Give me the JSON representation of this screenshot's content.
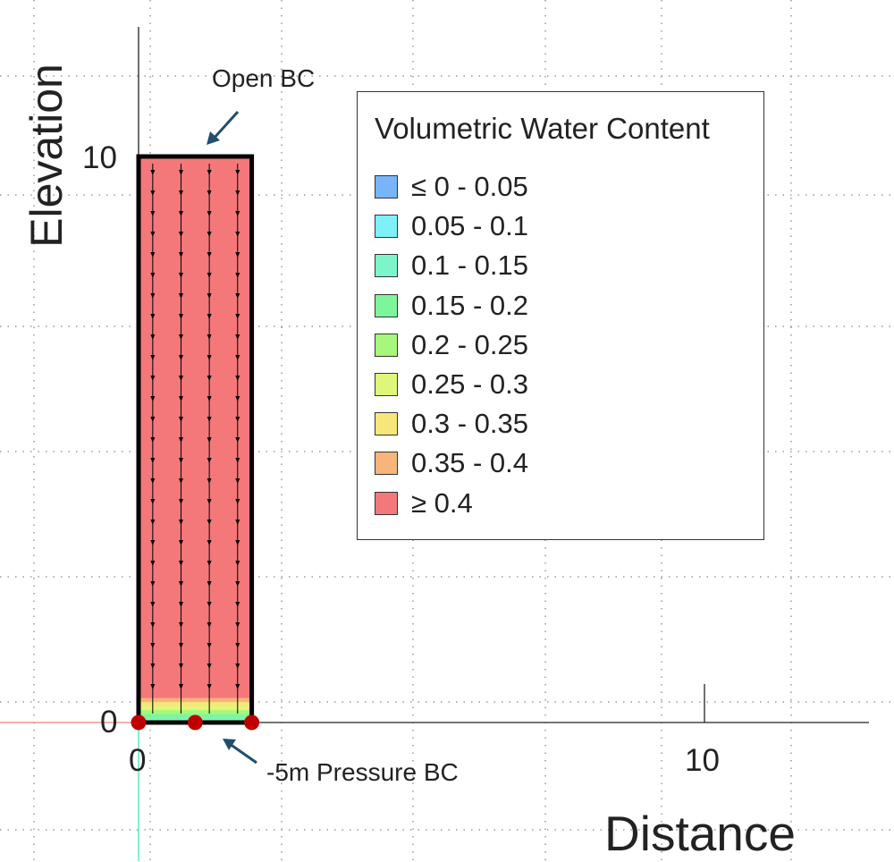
{
  "axes": {
    "ylabel": "Elevation",
    "xlabel": "Distance",
    "x_ticks": [
      0,
      10
    ],
    "y_ticks": [
      0,
      10
    ]
  },
  "annotations": {
    "top": "Open BC",
    "bottom": "-5m Pressure BC"
  },
  "legend": {
    "title": "Volumetric Water Content",
    "items": [
      {
        "label": "≤ 0 - 0.05",
        "color": "#78b4f8"
      },
      {
        "label": "0.05 - 0.1",
        "color": "#7ef0f8"
      },
      {
        "label": "0.1 - 0.15",
        "color": "#7df5c9"
      },
      {
        "label": "0.15 - 0.2",
        "color": "#7ef59a"
      },
      {
        "label": "0.2 - 0.25",
        "color": "#a6f77b"
      },
      {
        "label": "0.25 - 0.3",
        "color": "#def77b"
      },
      {
        "label": "0.3 - 0.35",
        "color": "#f7e77b"
      },
      {
        "label": "0.35 - 0.4",
        "color": "#f7b57b"
      },
      {
        "label": "≥ 0.4",
        "color": "#f4787a"
      }
    ]
  },
  "column": {
    "x_range": [
      0,
      2
    ],
    "y_range": [
      0,
      10
    ],
    "fill_color": "#f4787a",
    "bottom_band_colors": [
      "#f4787a",
      "#f7b57b",
      "#f7e77b",
      "#def77b",
      "#a6f77b",
      "#7ef59a",
      "#7df5c9"
    ]
  },
  "boundary_points_x": [
    0,
    1,
    2
  ],
  "flow_line_x": [
    0.25,
    0.75,
    1.25,
    1.75
  ]
}
